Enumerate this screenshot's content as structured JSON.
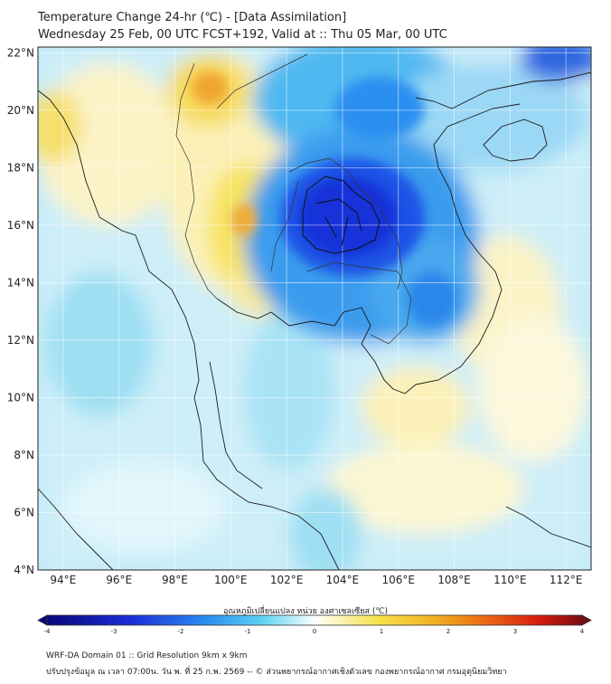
{
  "header": {
    "title": "Temperature Change 24-hr (℃) - [Data Assimilation]",
    "subtitle": "Wednesday 25 Feb, 00 UTC FCST+192, Valid at :: Thu 05 Mar, 00 UTC"
  },
  "map": {
    "lat_labels": [
      "22°N",
      "20°N",
      "18°N",
      "16°N",
      "14°N",
      "12°N",
      "10°N",
      "8°N",
      "6°N",
      "4°N"
    ],
    "lon_labels": [
      "94°E",
      "96°E",
      "98°E",
      "100°E",
      "102°E",
      "104°E",
      "106°E",
      "108°E",
      "110°E",
      "112°E"
    ],
    "lat_range": [
      4,
      22.2
    ],
    "lon_range": [
      93.1,
      112.9
    ]
  },
  "colorbar": {
    "label": "อุณหภูมิเปลี่ยนแปลง หน่วย องศาเซลเซียส (℃)",
    "ticks": [
      "-4",
      "-3",
      "-2",
      "-1",
      "0",
      "1",
      "2",
      "3",
      "4"
    ],
    "range": [
      -4,
      4
    ],
    "colors": {
      "min": "#08087a",
      "cold": "#1c3fe0",
      "cool": "#48c8ef",
      "neutral": "#ffffff",
      "warm": "#f7e34f",
      "hot": "#f08a1c",
      "max": "#7a0e0e"
    }
  },
  "footer": {
    "line1": "WRF-DA Domain 01 :: Grid Resolution 9km x 9km",
    "line2": "ปรับปรุงข้อมูล ณ เวลา 07:00น. วัน พ. ที่ 25 ก.พ. 2569 -- © ส่วนพยากรณ์อากาศเชิงตัวเลข กองพยากรณ์อากาศ กรมอุตุนิยมวิทยา"
  }
}
